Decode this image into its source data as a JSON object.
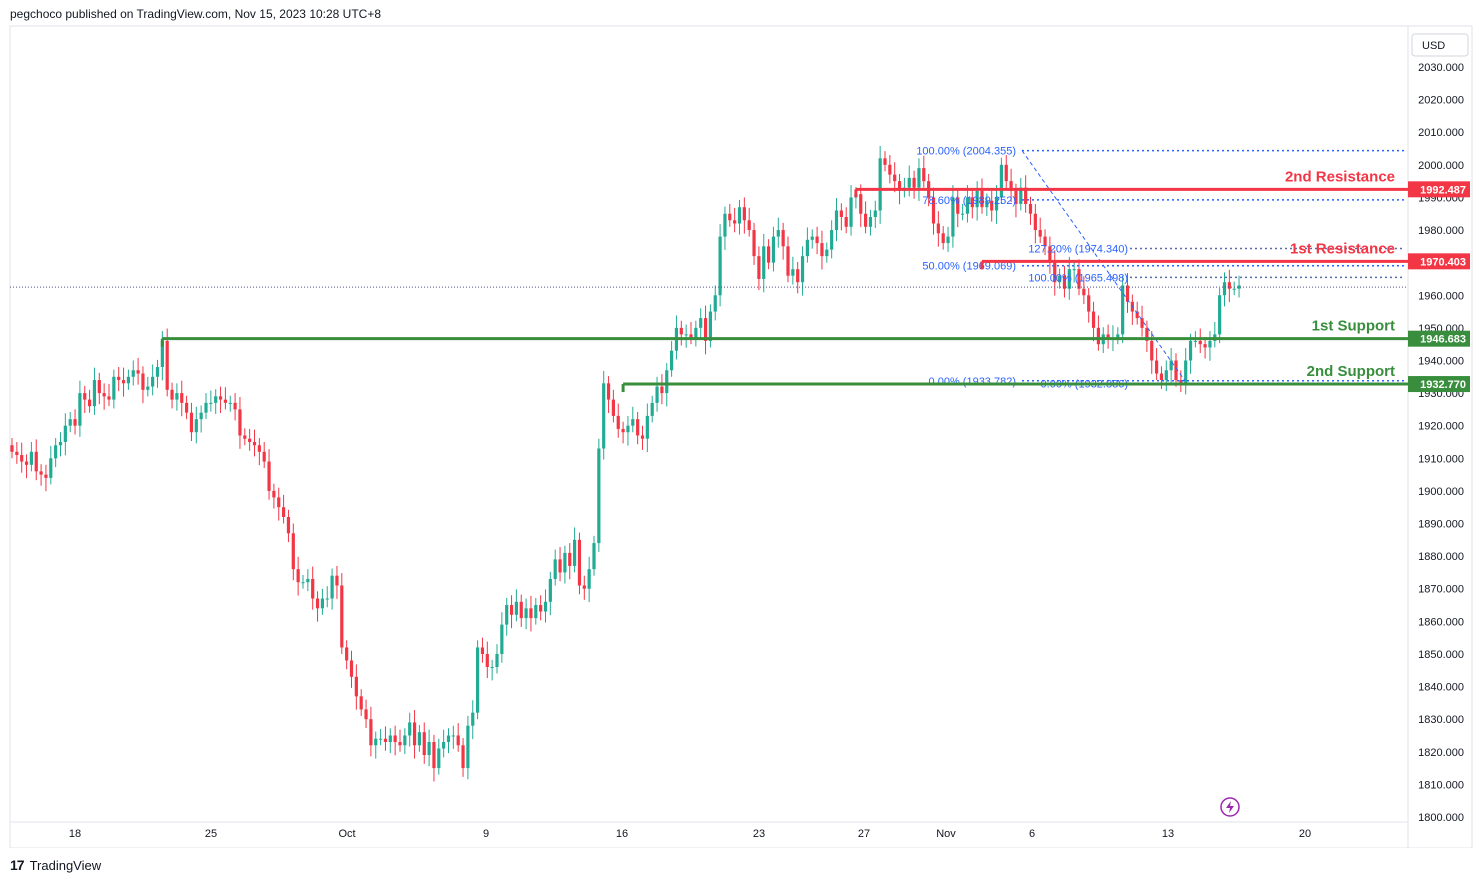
{
  "header": {
    "text": "pegchoco published on TradingView.com, Nov 15, 2023 10:28 UTC+8"
  },
  "footer": {
    "logo": "17",
    "brand": "TradingView"
  },
  "currency": "USD",
  "colors": {
    "up": "#22ab94",
    "down": "#f23645",
    "support": "#388e3c",
    "resistance": "#f23645",
    "fib": "#2962ff"
  },
  "chart_data": {
    "type": "candlestick",
    "ylim": [
      1800,
      2035
    ],
    "y_ticks": [
      1800,
      1810,
      1820,
      1830,
      1840,
      1850,
      1860,
      1870,
      1880,
      1890,
      1900,
      1910,
      1920,
      1930,
      1940,
      1950,
      1960,
      1970,
      1980,
      1990,
      2000,
      2010,
      2020,
      2030
    ],
    "x_ticks": [
      "18",
      "25",
      "Oct",
      "9",
      "16",
      "23",
      "27",
      "Nov",
      "6",
      "13",
      "20"
    ],
    "grid": false,
    "current_price": 1962.5,
    "closes": [
      1912,
      1911,
      1909,
      1908,
      1912,
      1906,
      1905,
      1904,
      1910,
      1914,
      1915,
      1920,
      1922,
      1920,
      1930,
      1928,
      1926,
      1934,
      1930,
      1929,
      1928,
      1935,
      1934,
      1933,
      1935,
      1937,
      1936,
      1931,
      1932,
      1935,
      1938,
      1946,
      1931,
      1928,
      1930,
      1927,
      1924,
      1918,
      1922,
      1924,
      1927,
      1927,
      1929,
      1928,
      1927,
      1927,
      1925,
      1917,
      1916,
      1915,
      1914,
      1912,
      1909,
      1900,
      1898,
      1895,
      1892,
      1887,
      1876,
      1872,
      1872,
      1873,
      1867,
      1864,
      1867,
      1867,
      1874,
      1871,
      1852,
      1848,
      1843,
      1837,
      1833,
      1830,
      1822,
      1824,
      1824,
      1823,
      1825,
      1823,
      1822,
      1825,
      1829,
      1822,
      1826,
      1819,
      1823,
      1815,
      1821,
      1823,
      1825,
      1825,
      1822,
      1815,
      1828,
      1832,
      1852,
      1850,
      1846,
      1846,
      1850,
      1859,
      1865,
      1862,
      1866,
      1861,
      1864,
      1861,
      1865,
      1863,
      1866,
      1873,
      1879,
      1875,
      1881,
      1877,
      1885,
      1871,
      1870,
      1876,
      1884,
      1913,
      1933,
      1928,
      1923,
      1919,
      1918,
      1920,
      1922,
      1917,
      1916,
      1923,
      1927,
      1932,
      1930,
      1937,
      1943,
      1950,
      1948,
      1948,
      1947,
      1950,
      1953,
      1946,
      1955,
      1960,
      1978,
      1985,
      1983,
      1982,
      1987,
      1983,
      1980,
      1972,
      1965,
      1975,
      1970,
      1978,
      1980,
      1975,
      1966,
      1968,
      1964,
      1972,
      1977,
      1978,
      1976,
      1972,
      1974,
      1980,
      1986,
      1984,
      1981,
      1990,
      1991,
      1985,
      1981,
      1984,
      1986,
      2002,
      2000,
      1997,
      1995,
      1992,
      1993,
      1996,
      1993,
      1999,
      1995,
      1990,
      1982,
      1979,
      1976,
      1978,
      1990,
      1985,
      1985,
      1990,
      1987,
      1992,
      1987,
      1989,
      1986,
      1990,
      2000,
      1995,
      1992,
      1988,
      1993,
      1988,
      1985,
      1980,
      1978,
      1975,
      1970,
      1964,
      1966,
      1962,
      1968,
      1968,
      1962,
      1960,
      1955,
      1950,
      1945,
      1948,
      1947,
      1947,
      1948,
      1963,
      1958,
      1955,
      1953,
      1950,
      1946,
      1940,
      1936,
      1934,
      1937,
      1940,
      1934,
      1933,
      1940,
      1946,
      1946,
      1945,
      1944,
      1946,
      1948,
      1960,
      1964,
      1962,
      1962,
      1963
    ]
  },
  "levels": [
    {
      "id": "r2",
      "label": "2nd Resistance",
      "price": "1992.487",
      "value": 1992.487,
      "kind": "resistance",
      "start_index": 174
    },
    {
      "id": "r1",
      "label": "1st Resistance",
      "price": "1970.403",
      "value": 1970.403,
      "kind": "resistance",
      "start_index": 200
    },
    {
      "id": "s1",
      "label": "1st Support",
      "price": "1946.683",
      "value": 1946.683,
      "kind": "support",
      "start_index": 31
    },
    {
      "id": "s2",
      "label": "2nd Support",
      "price": "1932.770",
      "value": 1932.77,
      "kind": "support",
      "start_index": 126
    }
  ],
  "fib_retracement": [
    {
      "label": "100.00% (2004.355)",
      "value": 2004.355
    },
    {
      "label": "78.60% (1989.252)",
      "value": 1989.252
    },
    {
      "label": "50.00% (1969.069)",
      "value": 1969.069
    },
    {
      "label": "0.00% (1933.782)",
      "value": 1933.782
    }
  ],
  "fib_extension": [
    {
      "label": "127.20% (1974.340)",
      "value": 1974.34
    },
    {
      "label": "100.00% (1965.498)",
      "value": 1965.498
    },
    {
      "label": "0.00% (1932.886)",
      "value": 1932.886
    }
  ]
}
